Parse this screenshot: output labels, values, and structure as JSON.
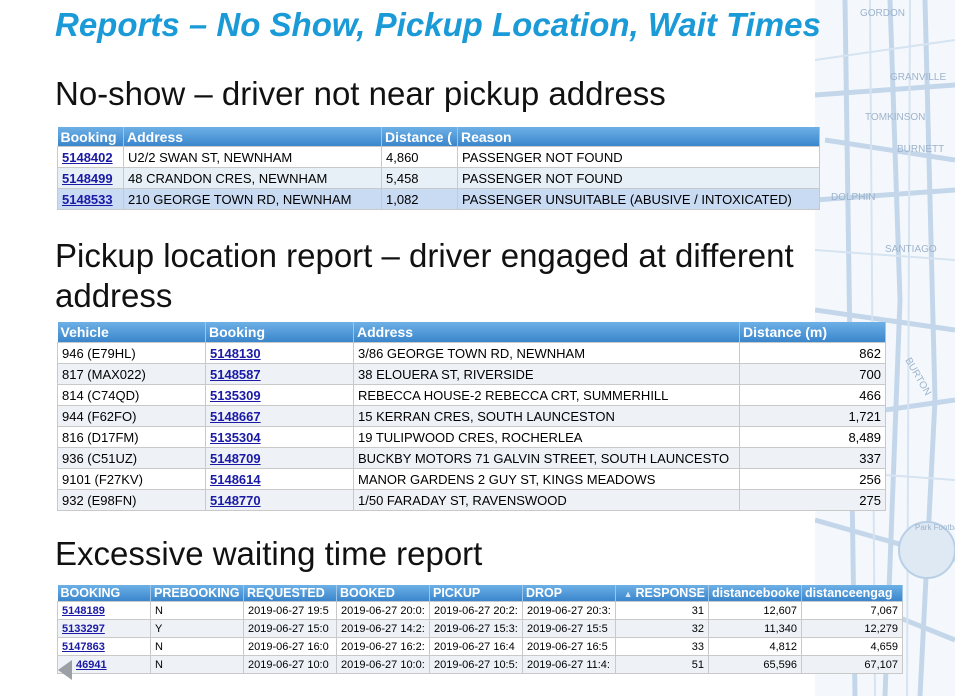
{
  "title": "Reports – No Show, Pickup Location, Wait Times",
  "noshow": {
    "heading": "No-show – driver not near pickup address",
    "columns": [
      "Booking",
      "Address",
      "Distance (",
      "Reason"
    ],
    "rows": [
      {
        "booking": "5148402",
        "address": "U2/2 SWAN ST, NEWNHAM",
        "distance": "4,860",
        "reason": "PASSENGER NOT FOUND"
      },
      {
        "booking": "5148499",
        "address": "48 CRANDON CRES, NEWNHAM",
        "distance": "5,458",
        "reason": "PASSENGER NOT FOUND"
      },
      {
        "booking": "5148533",
        "address": "210 GEORGE TOWN RD, NEWNHAM",
        "distance": "1,082",
        "reason": "PASSENGER UNSUITABLE (ABUSIVE / INTOXICATED)"
      }
    ]
  },
  "pickup": {
    "heading_line1": "Pickup location report – driver engaged at different",
    "heading_line2": "address",
    "columns": [
      "Vehicle",
      "Booking",
      "Address",
      "Distance (m)"
    ],
    "rows": [
      {
        "vehicle": "946 (E79HL)",
        "booking": "5148130",
        "address": "3/86 GEORGE TOWN RD, NEWNHAM",
        "distance": "862"
      },
      {
        "vehicle": "817 (MAX022)",
        "booking": "5148587",
        "address": "38 ELOUERA ST, RIVERSIDE",
        "distance": "700"
      },
      {
        "vehicle": "814 (C74QD)",
        "booking": "5135309",
        "address": "REBECCA HOUSE-2 REBECCA CRT, SUMMERHILL",
        "distance": "466"
      },
      {
        "vehicle": "944 (F62FO)",
        "booking": "5148667",
        "address": "15 KERRAN CRES, SOUTH LAUNCESTON",
        "distance": "1,721"
      },
      {
        "vehicle": "816 (D17FM)",
        "booking": "5135304",
        "address": "19 TULIPWOOD CRES, ROCHERLEA",
        "distance": "8,489"
      },
      {
        "vehicle": "936 (C51UZ)",
        "booking": "5148709",
        "address": "BUCKBY MOTORS 71 GALVIN STREET, SOUTH LAUNCESTO",
        "distance": "337"
      },
      {
        "vehicle": "9101 (F27KV)",
        "booking": "5148614",
        "address": "MANOR GARDENS 2 GUY ST, KINGS MEADOWS",
        "distance": "256"
      },
      {
        "vehicle": "932 (E98FN)",
        "booking": "5148770",
        "address": "1/50 FARADAY ST, RAVENSWOOD",
        "distance": "275"
      }
    ]
  },
  "waiting": {
    "heading": "Excessive waiting time report",
    "sort_indicator": "▲",
    "columns": [
      "BOOKING",
      "PREBOOKING",
      "REQUESTED",
      "BOOKED",
      "PICKUP",
      "DROP",
      "RESPONSE",
      "distancebooke",
      "distanceengag"
    ],
    "rows": [
      {
        "booking": "5148189",
        "prebooking": "N",
        "requested": "2019-06-27 19:5",
        "booked": "2019-06-27 20:0:",
        "pickup": "2019-06-27 20:2:",
        "drop": "2019-06-27 20:3:",
        "response": "31",
        "distbooked": "12,607",
        "distengaged": "7,067"
      },
      {
        "booking": "5133297",
        "prebooking": "Y",
        "requested": "2019-06-27 15:0",
        "booked": "2019-06-27 14:2:",
        "pickup": "2019-06-27 15:3:",
        "drop": "2019-06-27 15:5",
        "response": "32",
        "distbooked": "11,340",
        "distengaged": "12,279"
      },
      {
        "booking": "5147863",
        "prebooking": "N",
        "requested": "2019-06-27 16:0",
        "booked": "2019-06-27 16:2:",
        "pickup": "2019-06-27 16:4",
        "drop": "2019-06-27 16:5",
        "response": "33",
        "distbooked": "4,812",
        "distengaged": "4,659"
      },
      {
        "booking": "46941",
        "prebooking": "N",
        "requested": "2019-06-27 10:0",
        "booked": "2019-06-27 10:0:",
        "pickup": "2019-06-27 10:5:",
        "drop": "2019-06-27 11:4:",
        "response": "51",
        "distbooked": "65,596",
        "distengaged": "67,107"
      }
    ]
  },
  "map_labels": [
    "GORDON",
    "GRANVILLE",
    "TOMKINSON",
    "BURNETT",
    "DOLPHIN",
    "SANTIAGO",
    "BURTON",
    "Park Football Club"
  ]
}
